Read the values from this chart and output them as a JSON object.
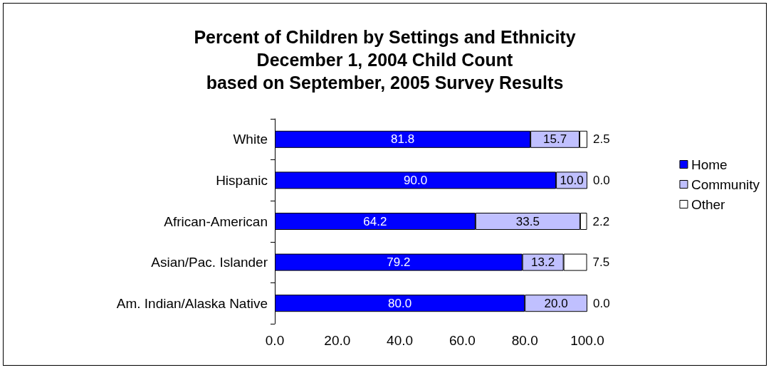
{
  "chart_data": {
    "type": "bar",
    "orientation": "horizontal",
    "stacked": true,
    "title": "Percent of Children by Settings and Ethnicity\nDecember 1, 2004 Child Count\nbased on September, 2005 Survey Results",
    "categories": [
      "White",
      "Hispanic",
      "African-American",
      "Asian/Pac. Islander",
      "Am. Indian/Alaska Native"
    ],
    "series": [
      {
        "name": "Home",
        "color": "#0000ff",
        "values": [
          81.8,
          90.0,
          64.2,
          79.2,
          80.0
        ],
        "value_labels": [
          "81.8",
          "90.0",
          "64.2",
          "79.2",
          "80.0"
        ]
      },
      {
        "name": "Community",
        "color": "#c0c0ff",
        "values": [
          15.7,
          10.0,
          33.5,
          13.2,
          20.0
        ],
        "value_labels": [
          "15.7",
          "10.0",
          "33.5",
          "13.2",
          "20.0"
        ]
      },
      {
        "name": "Other",
        "color": "#ffffff",
        "values": [
          2.5,
          0.0,
          2.2,
          7.5,
          0.0
        ],
        "value_labels": [
          "2.5",
          "0.0",
          "2.2",
          "7.5",
          "0.0"
        ]
      }
    ],
    "xlim": [
      0,
      100
    ],
    "xticks": [
      {
        "value": 0,
        "label": "0.0"
      },
      {
        "value": 20,
        "label": "20.0"
      },
      {
        "value": 40,
        "label": "40.0"
      },
      {
        "value": 60,
        "label": "60.0"
      },
      {
        "value": 80,
        "label": "80.0"
      },
      {
        "value": 100,
        "label": "100.0"
      }
    ],
    "grid": false,
    "legend": "right"
  }
}
